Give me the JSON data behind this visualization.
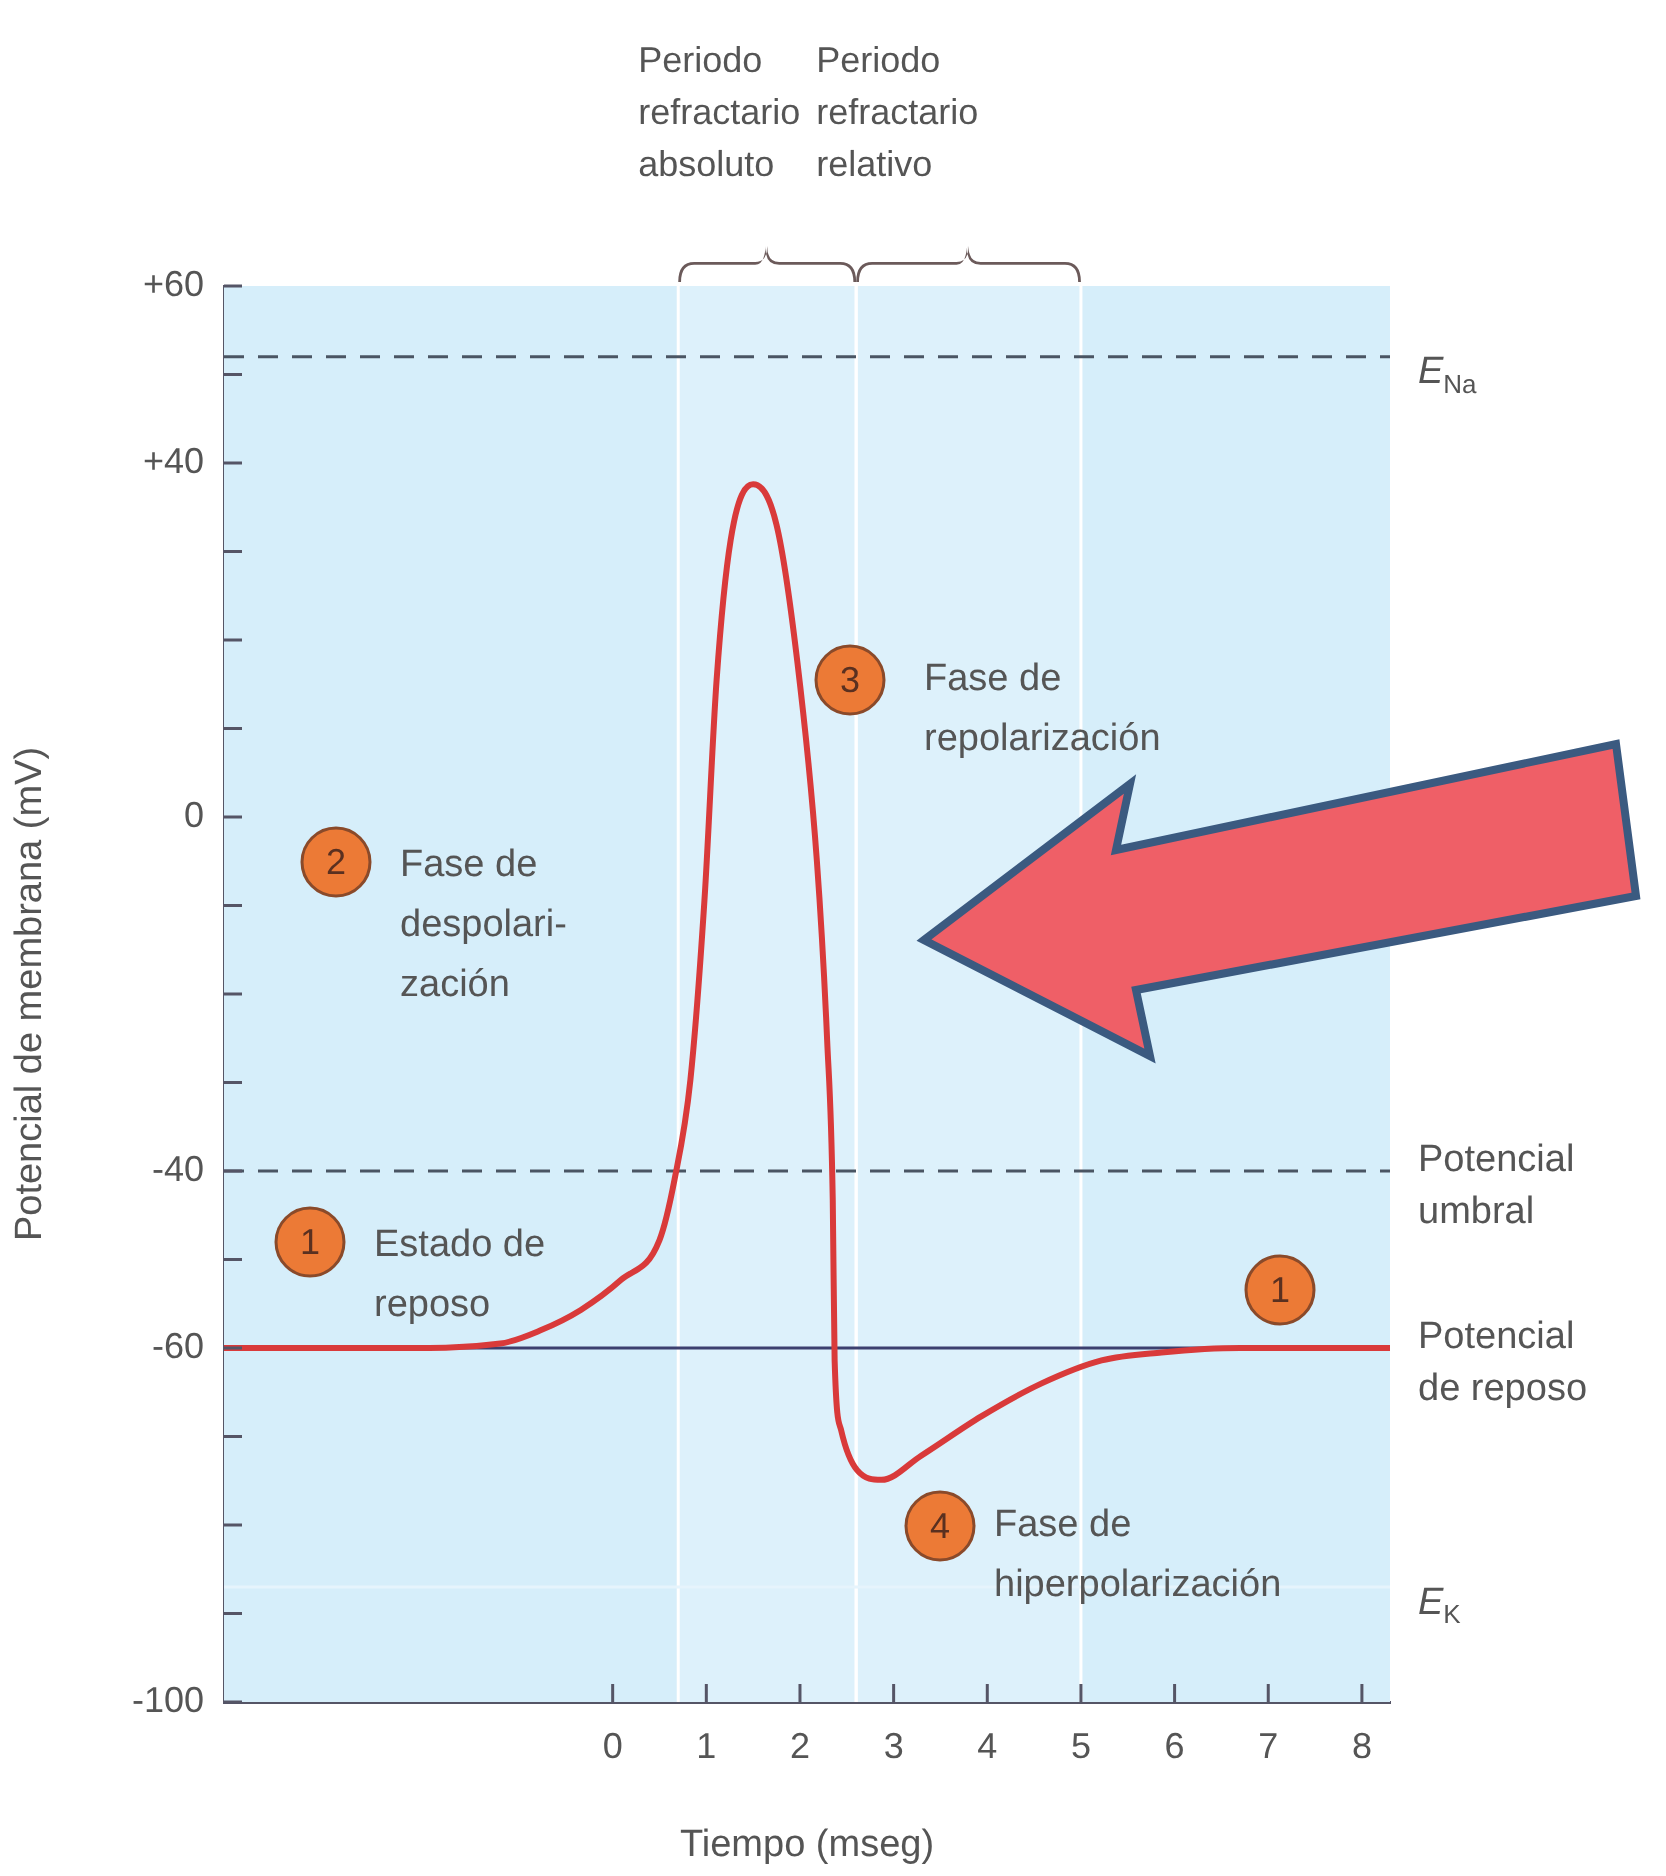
{
  "chart_data": {
    "type": "line",
    "xlabel": "Tiempo (mseg)",
    "ylabel": "Potencial de membrana (mV)",
    "xlim": [
      -4.15,
      8.3
    ],
    "xticks": [
      0,
      1,
      2,
      3,
      4,
      5,
      6,
      7,
      8
    ],
    "ylim": [
      -100,
      60
    ],
    "yticks": [
      {
        "value": 60,
        "label": "+60"
      },
      {
        "value": 50,
        "label": null
      },
      {
        "value": 40,
        "label": "+40"
      },
      {
        "value": 30,
        "label": null
      },
      {
        "value": 20,
        "label": null
      },
      {
        "value": 10,
        "label": null
      },
      0,
      {
        "value": -10,
        "label": null
      },
      {
        "value": -20,
        "label": null
      },
      {
        "value": -30,
        "label": null
      },
      -40,
      {
        "value": -50,
        "label": null
      },
      -60,
      {
        "value": -70,
        "label": null
      },
      {
        "value": -80,
        "label": null
      },
      {
        "value": -90,
        "label": null
      },
      -100
    ],
    "marker": "none",
    "line_style": "solid",
    "series": [
      {
        "color": "#d93a3a",
        "x": [
          -4.15,
          -2.27,
          -1.2,
          -0.77,
          -0.34,
          0.09,
          0.5,
          0.66,
          0.83,
          0.98,
          1.11,
          1.26,
          1.5,
          1.75,
          1.97,
          2.18,
          2.29,
          2.35,
          2.37,
          2.44,
          2.61,
          2.87,
          3.29,
          3.94,
          4.58,
          5.22,
          5.86,
          6.7,
          8.3
        ],
        "values": [
          -60,
          -60,
          -59.5,
          -58,
          -55.7,
          -52.3,
          -47.8,
          -41,
          -29.7,
          -9.4,
          15.5,
          31.3,
          37.6,
          33,
          17.7,
          -4.9,
          -25.2,
          -43.3,
          -61.4,
          -69.3,
          -73.8,
          -74.9,
          -72.2,
          -67.7,
          -64,
          -61.4,
          -60.5,
          -60,
          -60
        ]
      }
    ],
    "ref_lines": [
      {
        "axis": "y",
        "value": 52,
        "label": "E$_{Na}$",
        "line_style": "dashed",
        "color": "#4a5563"
      },
      {
        "axis": "y",
        "value": -40,
        "label": "Potencial\numbral",
        "line_style": "dashed",
        "color": "#4a5563"
      },
      {
        "axis": "y",
        "value": -60,
        "label": "Potencial\nde reposo",
        "line_style": "solid",
        "color": "#3c3f6e"
      },
      {
        "axis": "y",
        "value": -87,
        "label": "E$_{K}$",
        "line_style": "solid",
        "color": "#e6f4fc"
      }
    ],
    "bands": [
      {
        "axis": "x",
        "from": 0.7,
        "to": 2.6,
        "label": "Periodo\nrefractario\nabsoluto",
        "color": "#ffffff"
      },
      {
        "axis": "x",
        "from": 2.6,
        "to": 5.0,
        "label": "Periodo\nrefractario\nrelativo",
        "color": "#ffffff"
      }
    ],
    "annotations": [
      "1",
      "Estado de\nreposo",
      "2",
      "Fase de\ndespolari-\nzación",
      "3",
      "Fase de\nrepolarización",
      "4",
      "Fase de\nhiperpolarización",
      "1"
    ]
  }
}
